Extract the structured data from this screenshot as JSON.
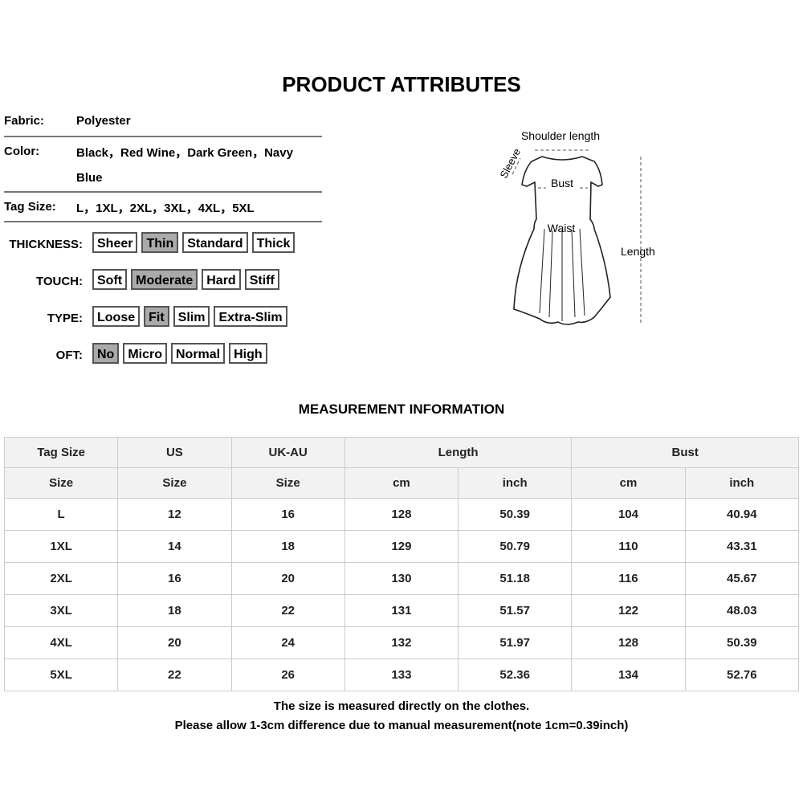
{
  "title": "PRODUCT ATTRIBUTES",
  "attributes": [
    {
      "label": "Fabric:",
      "value": "Polyester"
    },
    {
      "label": "Color:",
      "value": "Black，Red Wine，Dark Green，Navy",
      "value2": "Blue"
    },
    {
      "label": "Tag Size:",
      "value": "L，1XL，2XL，3XL，4XL，5XL"
    }
  ],
  "options": [
    {
      "label": "THICKNESS:",
      "items": [
        "Sheer",
        "Thin",
        "Standard",
        "Thick"
      ],
      "selected": "Thin"
    },
    {
      "label": "TOUCH:",
      "items": [
        "Soft",
        "Moderate",
        "Hard",
        "Stiff"
      ],
      "selected": "Moderate"
    },
    {
      "label": "TYPE:",
      "items": [
        "Loose",
        "Fit",
        "Slim",
        "Extra-Slim"
      ],
      "selected": "Fit"
    },
    {
      "label": "OFT:",
      "items": [
        "No",
        "Micro",
        "Normal",
        "High"
      ],
      "selected": "No"
    }
  ],
  "diagram": {
    "shoulder": "Shoulder length",
    "sleeve": "Sleeve",
    "bust": "Bust",
    "waist": "Waist",
    "length": "Length"
  },
  "measurement_title": "MEASUREMENT INFORMATION",
  "table": {
    "header1": [
      "Tag Size",
      "US",
      "UK-AU",
      "Length",
      "Bust"
    ],
    "header2": [
      "Size",
      "Size",
      "Size",
      "cm",
      "inch",
      "cm",
      "inch"
    ],
    "rows": [
      [
        "L",
        "12",
        "16",
        "128",
        "50.39",
        "104",
        "40.94"
      ],
      [
        "1XL",
        "14",
        "18",
        "129",
        "50.79",
        "110",
        "43.31"
      ],
      [
        "2XL",
        "16",
        "20",
        "130",
        "51.18",
        "116",
        "45.67"
      ],
      [
        "3XL",
        "18",
        "22",
        "131",
        "51.57",
        "122",
        "48.03"
      ],
      [
        "4XL",
        "20",
        "24",
        "132",
        "51.97",
        "128",
        "50.39"
      ],
      [
        "5XL",
        "22",
        "26",
        "133",
        "52.36",
        "134",
        "52.76"
      ]
    ]
  },
  "notes": [
    "The size is measured directly on the clothes.",
    "Please allow 1-3cm difference due to manual measurement(note 1cm=0.39inch)"
  ]
}
